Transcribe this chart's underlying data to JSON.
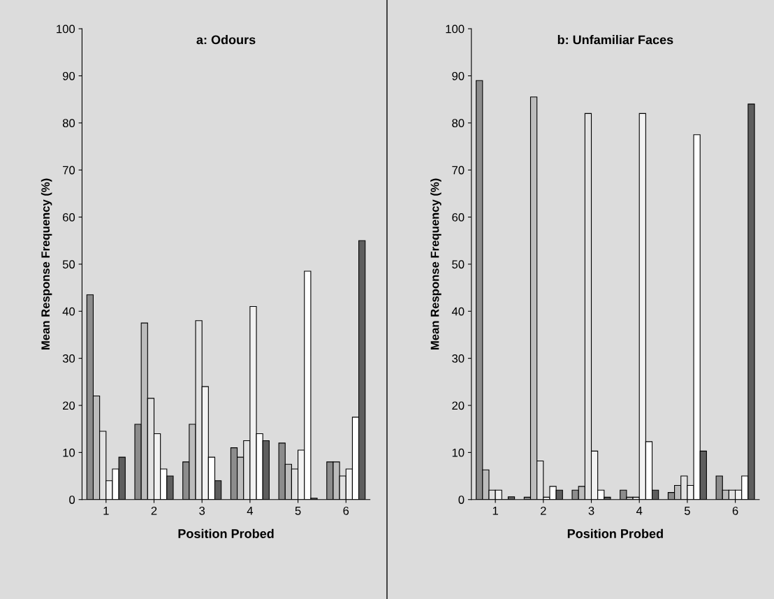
{
  "chart_data": [
    {
      "type": "bar",
      "title": "a: Odours",
      "xlabel": "Position Probed",
      "ylabel": "Mean Response Frequency (%)",
      "categories": [
        "1",
        "2",
        "3",
        "4",
        "5",
        "6"
      ],
      "ylim": [
        0,
        100
      ],
      "yticks": [
        0,
        10,
        20,
        30,
        40,
        50,
        60,
        70,
        80,
        90,
        100
      ],
      "grid": false,
      "legend": false,
      "series": [
        {
          "color": "#8c8c8c",
          "values": [
            43.5,
            16,
            8,
            11,
            12,
            8
          ]
        },
        {
          "color": "#bcbcbc",
          "values": [
            22,
            37.5,
            16,
            9,
            7.5,
            8
          ]
        },
        {
          "color": "#e2e2e2",
          "values": [
            14.5,
            21.5,
            38,
            12.5,
            6.5,
            5
          ]
        },
        {
          "color": "#f2f2f2",
          "values": [
            4,
            14,
            24,
            41,
            10.5,
            6.5
          ]
        },
        {
          "color": "#ffffff",
          "values": [
            6.5,
            6.5,
            9,
            14,
            48.5,
            17.5
          ]
        },
        {
          "color": "#5e5e5e",
          "values": [
            9,
            5,
            4,
            12.5,
            0.3,
            55
          ]
        }
      ]
    },
    {
      "type": "bar",
      "title": "b: Unfamiliar Faces",
      "xlabel": "Position Probed",
      "ylabel": "Mean Response Frequency (%)",
      "categories": [
        "1",
        "2",
        "3",
        "4",
        "5",
        "6"
      ],
      "ylim": [
        0,
        100
      ],
      "yticks": [
        0,
        10,
        20,
        30,
        40,
        50,
        60,
        70,
        80,
        90,
        100
      ],
      "grid": false,
      "legend": false,
      "series": [
        {
          "color": "#8c8c8c",
          "values": [
            89,
            0.5,
            2,
            2,
            1.5,
            5
          ]
        },
        {
          "color": "#bcbcbc",
          "values": [
            6.3,
            85.5,
            2.8,
            0.5,
            3,
            2
          ]
        },
        {
          "color": "#e2e2e2",
          "values": [
            2,
            8.2,
            82,
            0.5,
            5,
            2
          ]
        },
        {
          "color": "#f2f2f2",
          "values": [
            2,
            0.5,
            10.3,
            82,
            3,
            2
          ]
        },
        {
          "color": "#ffffff",
          "values": [
            0,
            2.8,
            2,
            12.3,
            77.5,
            5
          ]
        },
        {
          "color": "#5e5e5e",
          "values": [
            0.6,
            2,
            0.5,
            2,
            10.3,
            84
          ]
        }
      ]
    }
  ]
}
